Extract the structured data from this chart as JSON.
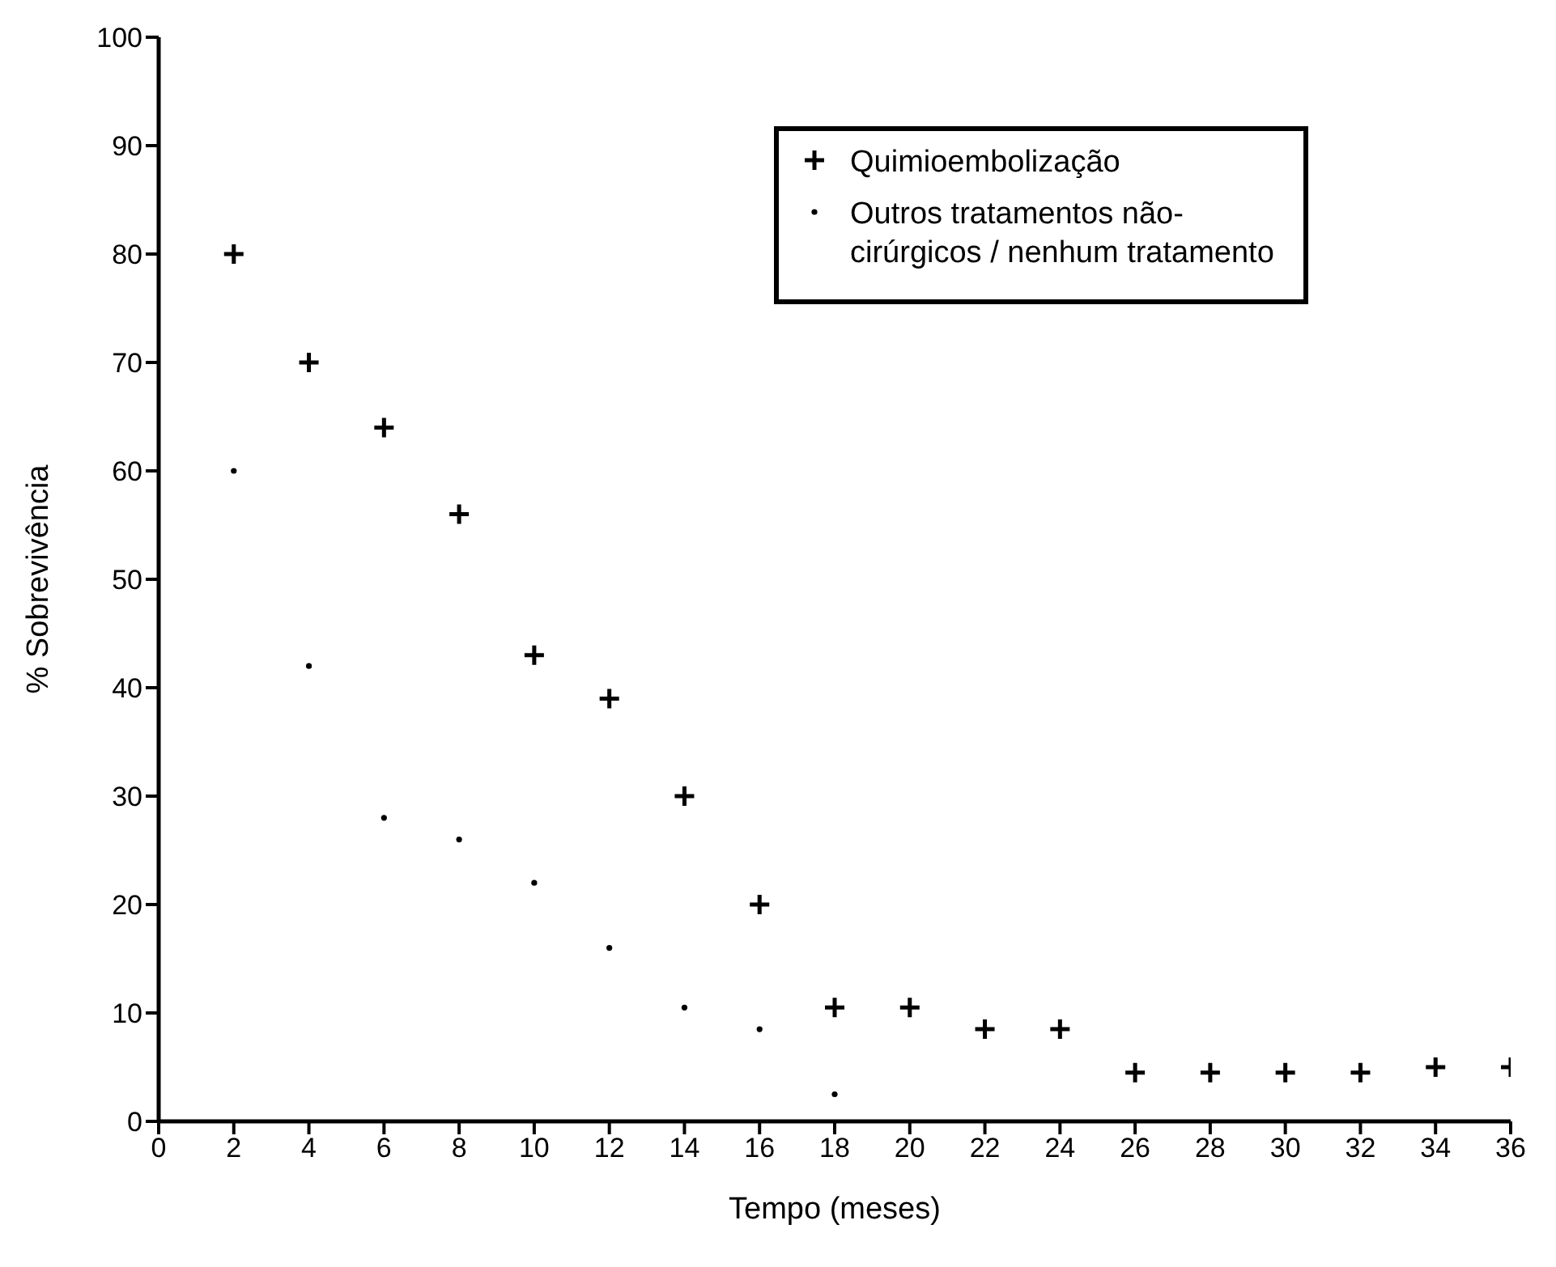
{
  "chart_data": {
    "type": "scatter",
    "xlabel": "Tempo (meses)",
    "ylabel": "% Sobrevivência",
    "xlim": [
      0,
      36
    ],
    "xticks": [
      0,
      2,
      4,
      6,
      8,
      10,
      12,
      14,
      16,
      18,
      20,
      22,
      24,
      26,
      28,
      30,
      32,
      34,
      36
    ],
    "ylim": [
      0,
      100
    ],
    "yticks": [
      0,
      10,
      20,
      30,
      40,
      50,
      60,
      70,
      80,
      90,
      100
    ],
    "grid": false,
    "legend": "top right",
    "series": [
      {
        "name": "Quimioembolização",
        "color": "#000000",
        "marker": "cross",
        "x": [
          2,
          4,
          6,
          8,
          10,
          12,
          14,
          16,
          18,
          20,
          22,
          24,
          26,
          28,
          30,
          32,
          34,
          36
        ],
        "values": [
          80,
          70,
          64,
          56,
          43,
          39,
          30,
          20,
          10.5,
          10.5,
          8.5,
          8.5,
          4.5,
          4.5,
          4.5,
          4.5,
          5,
          5
        ]
      },
      {
        "name": "Outros tratamentos não-cirúrgicos / nenhum tratamento",
        "color": "#000000",
        "marker": "circle",
        "x": [
          2,
          4,
          6,
          8,
          10,
          12,
          14,
          16,
          18
        ],
        "values": [
          60,
          42,
          28,
          26,
          22,
          16,
          10.5,
          8.5,
          2.5
        ]
      }
    ]
  }
}
